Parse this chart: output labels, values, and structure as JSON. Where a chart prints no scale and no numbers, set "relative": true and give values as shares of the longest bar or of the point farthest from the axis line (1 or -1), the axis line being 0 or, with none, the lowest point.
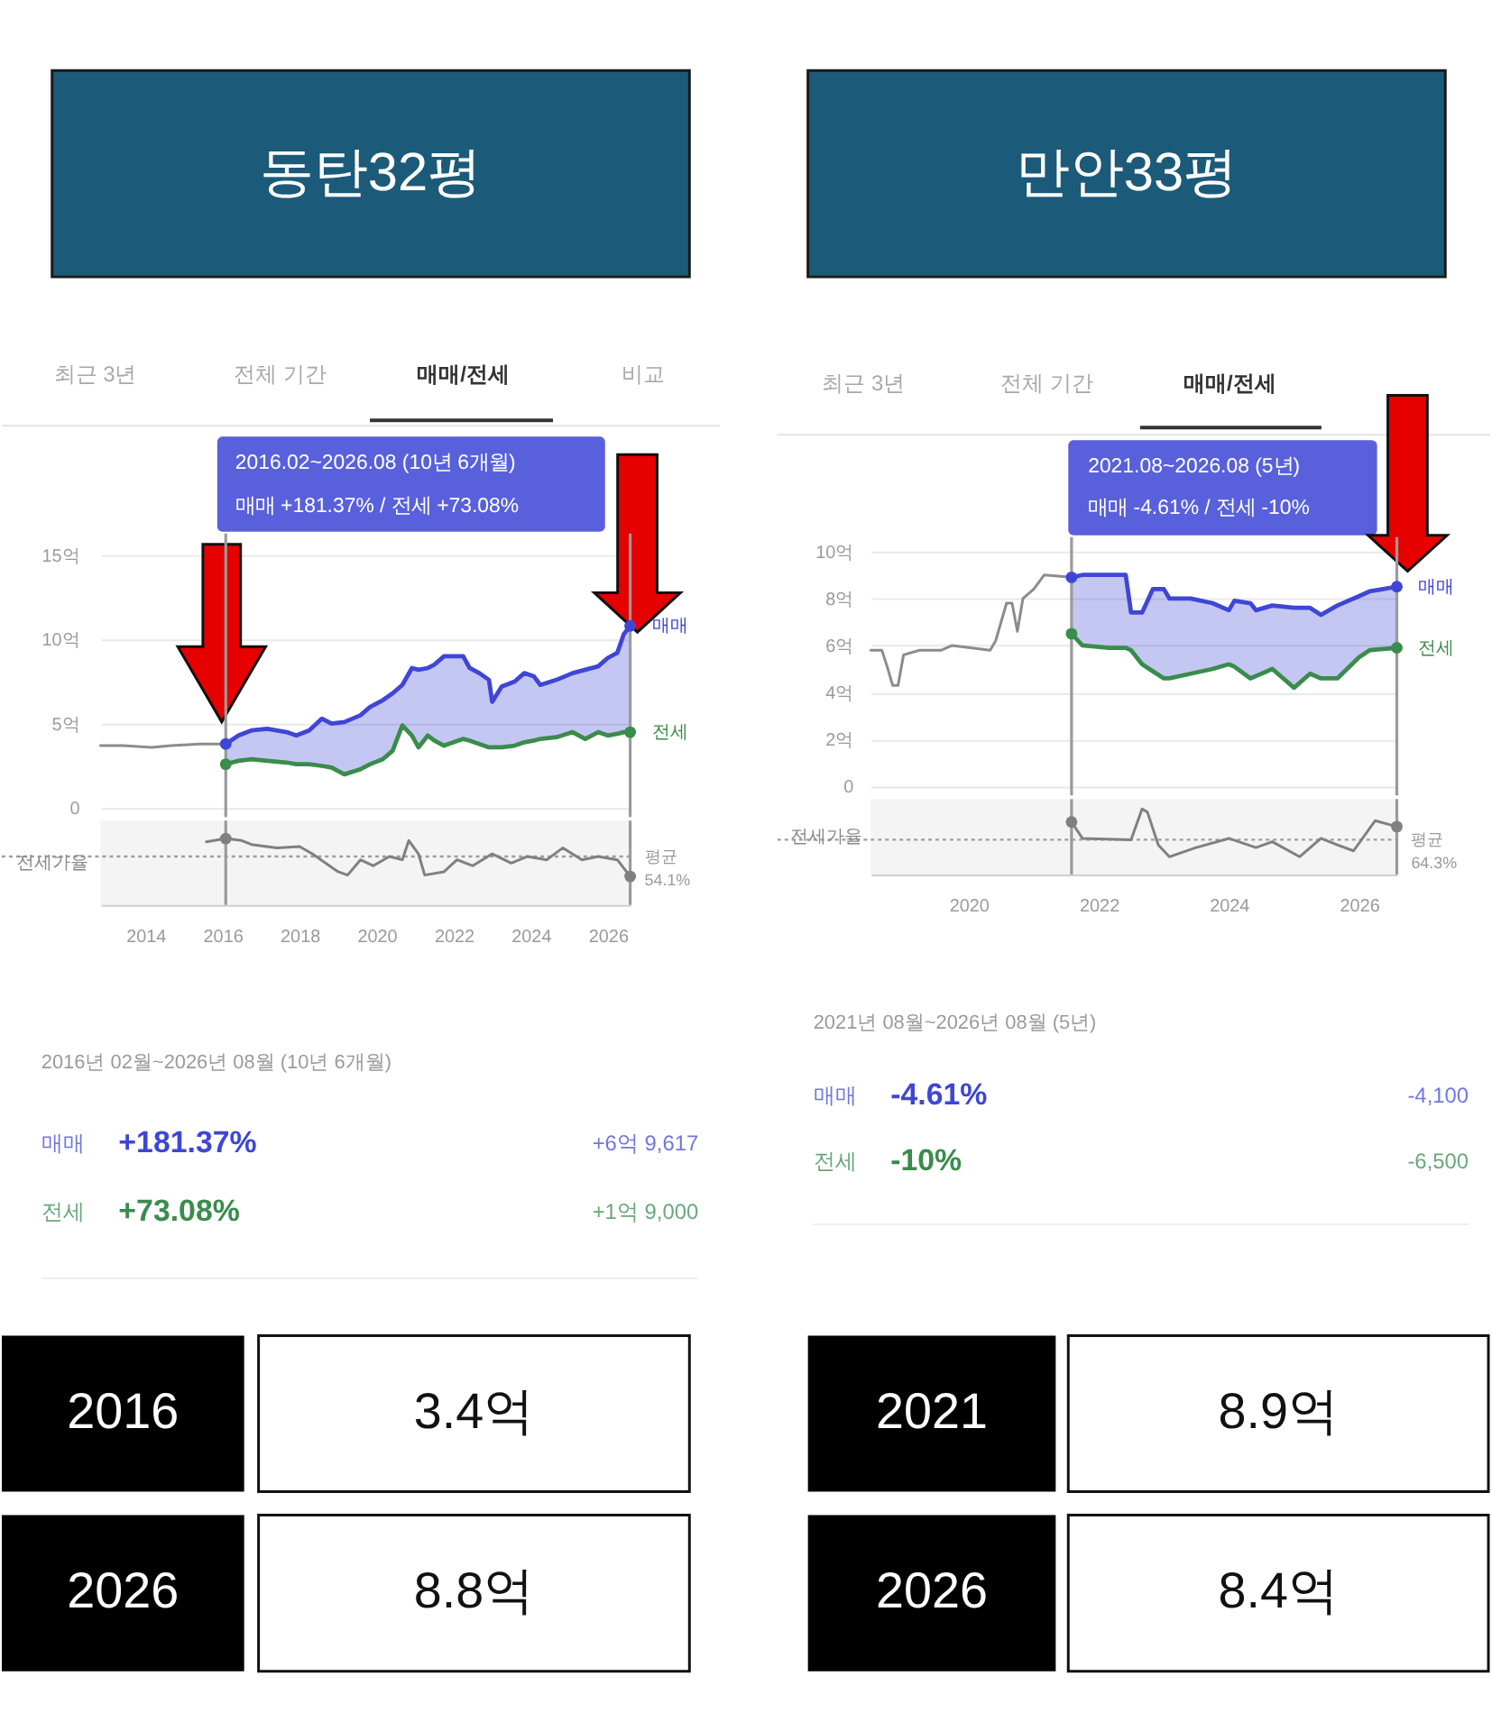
{
  "chart_data": [
    {
      "type": "line",
      "title": "동탄32평",
      "annotations": [
        "최근 3년",
        "전체 기간",
        "매매/전세",
        "비교",
        "2016.02~2026.08 (10년 6개월)",
        "매매 +181.37% / 전세 +73.08%"
      ],
      "x": [
        "2016-02",
        "2016-06",
        "2016-10",
        "2017-03",
        "2017-09",
        "2017-12",
        "2018-04",
        "2018-08",
        "2018-11",
        "2019-03",
        "2019-08",
        "2019-11",
        "2020-03",
        "2020-06",
        "2020-09",
        "2020-12",
        "2021-02",
        "2021-05",
        "2021-07",
        "2021-10",
        "2022-04",
        "2022-06",
        "2022-09",
        "2022-12",
        "2023-01",
        "2023-04",
        "2023-08",
        "2023-11",
        "2024-02",
        "2024-04",
        "2024-09",
        "2025-02",
        "2025-06",
        "2025-10",
        "2026-01",
        "2026-04",
        "2026-06",
        "2026-08"
      ],
      "series": [
        {
          "name": "매매",
          "color": "#3f46d6",
          "values": [
            3.8,
            4.3,
            4.6,
            4.7,
            4.5,
            4.3,
            4.6,
            5.3,
            5.0,
            5.1,
            5.5,
            6.0,
            6.4,
            6.8,
            7.3,
            8.3,
            8.2,
            8.3,
            8.5,
            9.0,
            9.0,
            8.3,
            8.0,
            7.6,
            6.3,
            7.2,
            7.5,
            8.0,
            7.8,
            7.3,
            7.6,
            8.0,
            8.2,
            8.4,
            8.9,
            9.2,
            10.3,
            10.8
          ],
          "lower": [
            2.6,
            2.8,
            2.9,
            2.8,
            2.7,
            2.6,
            2.6,
            2.5,
            2.4,
            2.0,
            2.3,
            2.6,
            2.9,
            3.4,
            4.9,
            4.3,
            3.6,
            4.3,
            4.0,
            3.7,
            4.1,
            4.0,
            3.8,
            3.6,
            3.6,
            3.6,
            3.7,
            3.9,
            4.0,
            4.1,
            4.2,
            4.5,
            4.1,
            4.5,
            4.3,
            4.4,
            4.5,
            4.5
          ],
          "upper": [
            3.8,
            4.3,
            4.6,
            4.7,
            4.5,
            4.3,
            4.6,
            5.3,
            5.0,
            5.1,
            5.5,
            6.0,
            6.4,
            6.8,
            7.3,
            8.3,
            8.2,
            8.3,
            8.5,
            9.0,
            9.0,
            8.3,
            8.0,
            7.6,
            6.3,
            7.2,
            7.5,
            8.0,
            7.8,
            7.3,
            7.6,
            8.0,
            8.2,
            8.4,
            8.9,
            9.2,
            10.3,
            10.8
          ]
        },
        {
          "name": "전세",
          "color": "#3a8c4c",
          "values": [
            2.6,
            2.8,
            2.9,
            2.8,
            2.7,
            2.6,
            2.6,
            2.5,
            2.4,
            2.0,
            2.3,
            2.6,
            2.9,
            3.4,
            4.9,
            4.3,
            3.6,
            4.3,
            4.0,
            3.7,
            4.1,
            4.0,
            3.8,
            3.6,
            3.6,
            3.6,
            3.7,
            3.9,
            4.0,
            4.1,
            4.2,
            4.5,
            4.1,
            4.5,
            4.3,
            4.4,
            4.5,
            4.5
          ]
        },
        {
          "color": "#8c8c8c",
          "x": [
            "2012-11",
            "2013-06",
            "2014-03",
            "2014-09",
            "2015-06",
            "2015-10",
            "2016-02"
          ],
          "values": [
            3.7,
            3.7,
            3.6,
            3.7,
            3.8,
            3.8,
            3.8
          ]
        },
        {
          "type": "scatter",
          "color": "#3f46d6",
          "x": [
            "2016-02",
            "2026-08"
          ],
          "values": [
            3.8,
            10.8
          ]
        },
        {
          "type": "scatter",
          "color": "#3a8c4c",
          "x": [
            "2016-02",
            "2026-08"
          ],
          "values": [
            2.6,
            4.5
          ]
        }
      ],
      "xlim": [
        "2012-11",
        "2026-08"
      ],
      "ylim": [
        0,
        15
      ],
      "yticks": [
        0,
        {
          "value": 5,
          "label": "5억"
        },
        {
          "value": 10,
          "label": "10억"
        },
        {
          "value": 15,
          "label": "15억"
        }
      ],
      "grid": "y",
      "tick_labels": "y",
      "ref_lines": [
        {
          "axis": "x",
          "value": "2016-02",
          "color": "#9a9a9a"
        },
        {
          "axis": "x",
          "value": "2026-08",
          "color": "#9a9a9a"
        }
      ]
    },
    {
      "type": "line",
      "relative": true,
      "ylabel": "전세가율",
      "x": [
        "2015-08",
        "2016-02",
        "2016-07",
        "2016-10",
        "2017-06",
        "2018-01",
        "2018-05",
        "2019-01",
        "2019-04",
        "2019-08",
        "2019-12",
        "2020-05",
        "2020-09",
        "2020-11",
        "2021-02",
        "2021-04",
        "2021-10",
        "2022-02",
        "2022-07",
        "2023-01",
        "2023-07",
        "2023-12",
        "2024-06",
        "2024-11",
        "2025-05",
        "2025-10",
        "2026-04",
        "2026-08"
      ],
      "series": [
        {
          "color": "#808080",
          "values": [
            0.95,
            1.0,
            0.97,
            0.91,
            0.86,
            0.88,
            0.77,
            0.5,
            0.45,
            0.68,
            0.59,
            0.73,
            0.68,
            0.97,
            0.77,
            0.45,
            0.5,
            0.68,
            0.59,
            0.77,
            0.63,
            0.73,
            0.68,
            0.86,
            0.68,
            0.73,
            0.68,
            0.43
          ]
        },
        {
          "type": "scatter",
          "color": "#808080",
          "x": [
            "2016-02",
            "2026-08"
          ],
          "values": [
            1.0,
            0.43
          ]
        }
      ],
      "xlim": [
        "2012-11",
        "2026-08"
      ],
      "xticks": [
        "2014",
        "2016",
        "2018",
        "2020",
        "2022",
        "2024",
        "2026"
      ],
      "tick_labels": "x",
      "ref_lines": [
        {
          "axis": "y",
          "value": 0.73,
          "label": "평균 54.1%",
          "color": "#9e9e9e",
          "line_style": "dotted"
        }
      ]
    },
    {
      "type": "other",
      "annotations": [
        "2016년 02월~2026년 08월 (10년 6개월)",
        "매매",
        "+181.37%",
        "+6억 9,617",
        "전세",
        "+73.08%",
        "+1억 9,000"
      ],
      "colors": [
        "#9a9a9a",
        "#7076e2",
        "#3f46d6",
        "#7076e2",
        "#6aa87a",
        "#3a8c4c",
        "#6aa87a"
      ]
    },
    {
      "type": "other",
      "annotations": [
        "2016",
        "3.4억",
        "2026",
        "8.8억"
      ]
    },
    {
      "type": "line",
      "title": "만안33평",
      "annotations": [
        "최근 3년",
        "전체 기간",
        "매매/전세",
        "2021.08~2026.08 (5년)",
        "매매 -4.61% / 전세 -10%"
      ],
      "x": [
        "2021-08",
        "2021-10",
        "2022-03",
        "2022-06",
        "2022-07",
        "2022-09",
        "2022-11",
        "2023-01",
        "2023-02",
        "2023-06",
        "2023-10",
        "2024-01",
        "2024-02",
        "2024-05",
        "2024-06",
        "2024-09",
        "2025-01",
        "2025-04",
        "2025-06",
        "2025-09",
        "2026-01",
        "2026-03",
        "2026-08"
      ],
      "series": [
        {
          "name": "매매",
          "color": "#3f46d6",
          "values": [
            8.9,
            9.0,
            9.0,
            9.0,
            7.4,
            7.4,
            8.4,
            8.4,
            8.0,
            8.0,
            7.8,
            7.5,
            7.9,
            7.8,
            7.5,
            7.7,
            7.6,
            7.6,
            7.3,
            7.7,
            8.1,
            8.3,
            8.5
          ],
          "lower": [
            6.5,
            6.0,
            5.9,
            5.9,
            5.8,
            5.2,
            4.9,
            4.6,
            4.6,
            4.8,
            5.0,
            5.2,
            5.1,
            4.6,
            4.7,
            5.0,
            4.2,
            4.8,
            4.6,
            4.6,
            5.5,
            5.8,
            5.9
          ],
          "upper": [
            8.9,
            9.0,
            9.0,
            9.0,
            7.4,
            7.4,
            8.4,
            8.4,
            8.0,
            8.0,
            7.8,
            7.5,
            7.9,
            7.8,
            7.5,
            7.7,
            7.6,
            7.6,
            7.3,
            7.7,
            8.1,
            8.3,
            8.5
          ]
        },
        {
          "name": "전세",
          "color": "#3a8c4c",
          "values": [
            6.5,
            6.0,
            5.9,
            5.9,
            5.8,
            5.2,
            4.9,
            4.6,
            4.6,
            4.8,
            5.0,
            5.2,
            5.1,
            4.6,
            4.7,
            5.0,
            4.2,
            4.8,
            4.6,
            4.6,
            5.5,
            5.8,
            5.9
          ]
        },
        {
          "color": "#8c8c8c",
          "x": [
            "2018-07",
            "2018-09",
            "2018-10",
            "2018-11",
            "2018-12",
            "2019-01",
            "2019-04",
            "2019-08",
            "2019-10",
            "2020-05",
            "2020-06",
            "2020-08",
            "2020-09",
            "2020-10",
            "2020-11",
            "2021-01",
            "2021-03",
            "2021-08"
          ],
          "values": [
            5.8,
            5.8,
            5.1,
            4.3,
            4.3,
            5.6,
            5.8,
            5.8,
            6.0,
            5.8,
            6.2,
            7.8,
            7.8,
            6.6,
            8.0,
            8.4,
            9.0,
            8.9
          ]
        },
        {
          "type": "scatter",
          "color": "#3f46d6",
          "x": [
            "2021-08",
            "2026-08"
          ],
          "values": [
            8.9,
            8.5
          ]
        },
        {
          "type": "scatter",
          "color": "#3a8c4c",
          "x": [
            "2021-08",
            "2026-08"
          ],
          "values": [
            6.5,
            5.9
          ]
        }
      ],
      "xlim": [
        "2018-07",
        "2026-08"
      ],
      "ylim": [
        0,
        10
      ],
      "yticks": [
        0,
        {
          "value": 2,
          "label": "2억"
        },
        {
          "value": 4,
          "label": "4억"
        },
        {
          "value": 6,
          "label": "6억"
        },
        {
          "value": 8,
          "label": "8억"
        },
        {
          "value": 10,
          "label": "10억"
        }
      ],
      "grid": "y",
      "tick_labels": "y",
      "ref_lines": [
        {
          "axis": "x",
          "value": "2021-08",
          "color": "#9a9a9a"
        },
        {
          "axis": "x",
          "value": "2026-08",
          "color": "#9a9a9a"
        }
      ]
    },
    {
      "type": "line",
      "relative": true,
      "ylabel": "전세가율",
      "x": [
        "2021-08",
        "2021-10",
        "2022-07",
        "2022-09",
        "2022-10",
        "2022-12",
        "2023-02",
        "2023-07",
        "2024-01",
        "2024-06",
        "2024-09",
        "2025-02",
        "2025-06",
        "2025-09",
        "2025-12",
        "2026-04",
        "2026-08"
      ],
      "series": [
        {
          "color": "#808080",
          "values": [
            0.8,
            0.55,
            0.53,
            1.0,
            0.95,
            0.45,
            0.27,
            0.41,
            0.55,
            0.41,
            0.5,
            0.27,
            0.55,
            0.45,
            0.36,
            0.82,
            0.73
          ]
        },
        {
          "type": "scatter",
          "color": "#808080",
          "x": [
            "2021-08",
            "2026-08"
          ],
          "values": [
            0.8,
            0.73
          ]
        }
      ],
      "xlim": [
        "2018-07",
        "2026-08"
      ],
      "xticks": [
        "2020",
        "2022",
        "2024",
        "2026"
      ],
      "tick_labels": "x",
      "ref_lines": [
        {
          "axis": "y",
          "value": 0.53,
          "label": "평균 64.3%",
          "color": "#9e9e9e",
          "line_style": "dotted"
        },
        {
          "axis": "x",
          "value": "2021-08",
          "color": "#9a9a9a"
        },
        {
          "axis": "x",
          "value": "2026-08",
          "color": "#9a9a9a"
        }
      ]
    },
    {
      "type": "other",
      "annotations": [
        "2021년 08월~2026년 08월 (5년)",
        "매매",
        "-4.61%",
        "-4,100",
        "전세",
        "-10%",
        "-6,500"
      ],
      "colors": [
        "#9a9a9a",
        "#7076e2",
        "#3f46d6",
        "#7076e2",
        "#6aa87a",
        "#3a8c4c",
        "#6aa87a"
      ]
    },
    {
      "type": "other",
      "annotations": [
        "2021",
        "8.9억",
        "2026",
        "8.4억"
      ]
    }
  ]
}
